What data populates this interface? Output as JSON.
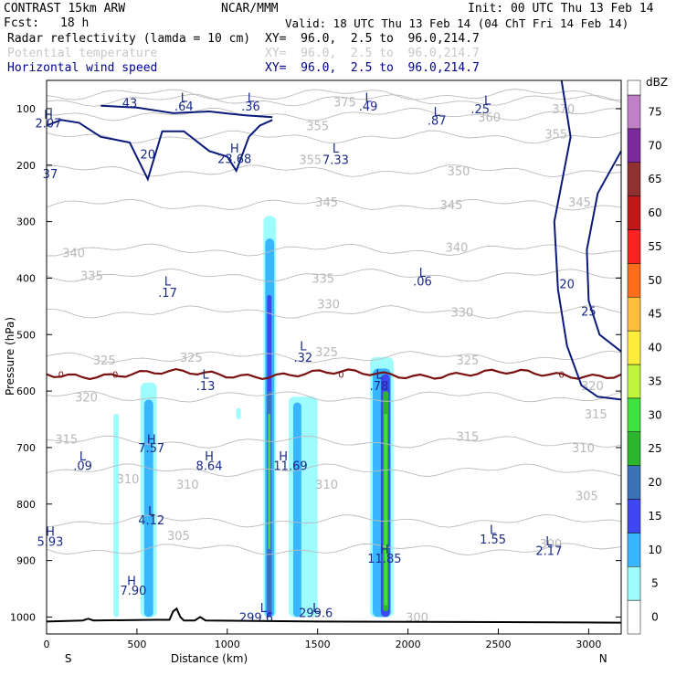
{
  "header": {
    "model": "CONTRAST 15km ARW",
    "org": "NCAR/MMM",
    "init": "Init: 00 UTC Thu 13 Feb 14",
    "fcst_label": "Fcst:",
    "fcst_value": "18 h",
    "valid": "Valid: 18 UTC Thu 13 Feb 14 (04 ChT Fri 14 Feb 14)"
  },
  "fields": [
    {
      "name": "Radar reflectivity (lamda = 10 cm)",
      "xy": "XY=  96.0,  2.5 to  96.0,214.7",
      "color": "#000000"
    },
    {
      "name": "Potential temperature",
      "xy": "XY=  96.0,  2.5 to  96.0,214.7",
      "color": "#c8c8c8"
    },
    {
      "name": "Horizontal wind speed",
      "xy": "XY=  96.0,  2.5 to  96.0,214.7",
      "color": "#00008b"
    }
  ],
  "chart_data": {
    "type": "cross-section",
    "xlabel": "Distance (km)",
    "ylabel": "Pressure (hPa)",
    "xlim": [
      0,
      3180
    ],
    "ylim": [
      1030,
      50
    ],
    "x_ticks": [
      0,
      500,
      1000,
      1500,
      2000,
      2500,
      3000
    ],
    "y_ticks": [
      100,
      200,
      300,
      400,
      500,
      600,
      700,
      800,
      900,
      1000
    ],
    "left_end": "S",
    "right_end": "N",
    "colorbar": {
      "unit": "dBZ",
      "levels": [
        0,
        5,
        10,
        15,
        20,
        25,
        30,
        35,
        40,
        45,
        50,
        55,
        60,
        65,
        70,
        75
      ],
      "colors": [
        "#ffffff",
        "#9ffcfc",
        "#38b6ff",
        "#3f48f0",
        "#3a73b8",
        "#2db52d",
        "#3fe23f",
        "#bef53c",
        "#fcec3c",
        "#fcbe3c",
        "#fb6c1c",
        "#fb2222",
        "#c01818",
        "#903030",
        "#7d2a9f",
        "#c080c8"
      ]
    },
    "reflectivity_cells": [
      {
        "x0": 370,
        "x1": 400,
        "ptop": 640,
        "pbot": 1000,
        "dbz": 5
      },
      {
        "x0": 520,
        "x1": 610,
        "ptop": 585,
        "pbot": 1000,
        "dbz": 5
      },
      {
        "x0": 540,
        "x1": 590,
        "ptop": 615,
        "pbot": 1000,
        "dbz": 10
      },
      {
        "x0": 1050,
        "x1": 1075,
        "ptop": 630,
        "pbot": 650,
        "dbz": 5
      },
      {
        "x0": 1200,
        "x1": 1270,
        "ptop": 290,
        "pbot": 1000,
        "dbz": 5
      },
      {
        "x0": 1210,
        "x1": 1260,
        "ptop": 330,
        "pbot": 1000,
        "dbz": 10
      },
      {
        "x0": 1220,
        "x1": 1245,
        "ptop": 430,
        "pbot": 1000,
        "dbz": 15
      },
      {
        "x0": 1222,
        "x1": 1243,
        "ptop": 600,
        "pbot": 990,
        "dbz": 20
      },
      {
        "x0": 1226,
        "x1": 1238,
        "ptop": 640,
        "pbot": 880,
        "dbz": 30
      },
      {
        "x0": 1340,
        "x1": 1500,
        "ptop": 610,
        "pbot": 1000,
        "dbz": 5
      },
      {
        "x0": 1365,
        "x1": 1410,
        "ptop": 620,
        "pbot": 1000,
        "dbz": 10
      },
      {
        "x0": 1790,
        "x1": 1920,
        "ptop": 540,
        "pbot": 1000,
        "dbz": 5
      },
      {
        "x0": 1805,
        "x1": 1905,
        "ptop": 560,
        "pbot": 1000,
        "dbz": 10
      },
      {
        "x0": 1850,
        "x1": 1900,
        "ptop": 570,
        "pbot": 1000,
        "dbz": 15
      },
      {
        "x0": 1862,
        "x1": 1892,
        "ptop": 600,
        "pbot": 990,
        "dbz": 25
      },
      {
        "x0": 1868,
        "x1": 1886,
        "ptop": 640,
        "pbot": 980,
        "dbz": 30
      }
    ],
    "theta_contours": [
      {
        "label": "300",
        "p": 880
      },
      {
        "label": "305",
        "p": 830
      },
      {
        "label": "310",
        "p": 740
      },
      {
        "label": "315",
        "p": 690
      },
      {
        "label": "320",
        "p": 610
      },
      {
        "label": "325",
        "p": 540
      },
      {
        "label": "330",
        "p": 460
      },
      {
        "label": "335",
        "p": 395
      },
      {
        "label": "340",
        "p": 350
      },
      {
        "label": "345",
        "p": 270
      },
      {
        "label": "350",
        "p": 210
      },
      {
        "label": "355",
        "p": 150
      },
      {
        "label": "360",
        "p": 110
      },
      {
        "label": "370",
        "p": 85
      },
      {
        "label": "375",
        "p": 75
      }
    ],
    "theta_labels": [
      {
        "text": "375",
        "x": 1650,
        "p": 88
      },
      {
        "text": "370",
        "x": 2860,
        "p": 100
      },
      {
        "text": "360",
        "x": 2450,
        "p": 115
      },
      {
        "text": "355",
        "x": 1500,
        "p": 130
      },
      {
        "text": "355",
        "x": 2820,
        "p": 145
      },
      {
        "text": "355",
        "x": 1460,
        "p": 190
      },
      {
        "text": "350",
        "x": 2280,
        "p": 210
      },
      {
        "text": "345",
        "x": 1550,
        "p": 265
      },
      {
        "text": "345",
        "x": 2240,
        "p": 270
      },
      {
        "text": "345",
        "x": 2950,
        "p": 265
      },
      {
        "text": "340",
        "x": 150,
        "p": 355
      },
      {
        "text": "340",
        "x": 2270,
        "p": 345
      },
      {
        "text": "335",
        "x": 250,
        "p": 395
      },
      {
        "text": "335",
        "x": 1530,
        "p": 400
      },
      {
        "text": "330",
        "x": 1560,
        "p": 445
      },
      {
        "text": "330",
        "x": 2300,
        "p": 460
      },
      {
        "text": "325",
        "x": 320,
        "p": 545
      },
      {
        "text": "325",
        "x": 800,
        "p": 540
      },
      {
        "text": "325",
        "x": 1550,
        "p": 530
      },
      {
        "text": "325",
        "x": 2330,
        "p": 545
      },
      {
        "text": "320",
        "x": 220,
        "p": 610
      },
      {
        "text": "320",
        "x": 3020,
        "p": 590
      },
      {
        "text": "315",
        "x": 110,
        "p": 685
      },
      {
        "text": "315",
        "x": 2330,
        "p": 680
      },
      {
        "text": "315",
        "x": 3040,
        "p": 640
      },
      {
        "text": "310",
        "x": 2970,
        "p": 700
      },
      {
        "text": "310",
        "x": 450,
        "p": 755
      },
      {
        "text": "310",
        "x": 780,
        "p": 765
      },
      {
        "text": "310",
        "x": 1550,
        "p": 765
      },
      {
        "text": "305",
        "x": 2990,
        "p": 785
      },
      {
        "text": "305",
        "x": 730,
        "p": 855
      },
      {
        "text": "300",
        "x": 2790,
        "p": 870
      },
      {
        "text": "300",
        "x": 2050,
        "p": 1000
      }
    ],
    "zero_line": {
      "label": "0",
      "p_mean": 570
    },
    "wind_labels": [
      {
        "text": "H",
        "x": 10,
        "p": 110
      },
      {
        "text": "2.07",
        "x": 10,
        "p": 125
      },
      {
        "text": ".43",
        "x": 450,
        "p": 90
      },
      {
        "text": "L",
        "x": 760,
        "p": 80
      },
      {
        "text": ".64",
        "x": 760,
        "p": 95
      },
      {
        "text": "L",
        "x": 1130,
        "p": 80
      },
      {
        "text": ".36",
        "x": 1130,
        "p": 95
      },
      {
        "text": "L",
        "x": 1780,
        "p": 80
      },
      {
        "text": ".49",
        "x": 1780,
        "p": 95
      },
      {
        "text": "L",
        "x": 2440,
        "p": 85
      },
      {
        "text": ".25",
        "x": 2400,
        "p": 100
      },
      {
        "text": "L",
        "x": 2160,
        "p": 105
      },
      {
        "text": ".87",
        "x": 2160,
        "p": 120
      },
      {
        "text": "20",
        "x": 560,
        "p": 180
      },
      {
        "text": "37",
        "x": 20,
        "p": 215
      },
      {
        "text": "H",
        "x": 1040,
        "p": 170
      },
      {
        "text": "23.68",
        "x": 1040,
        "p": 188
      },
      {
        "text": "L",
        "x": 1600,
        "p": 170
      },
      {
        "text": "7.33",
        "x": 1600,
        "p": 190
      },
      {
        "text": "L",
        "x": 670,
        "p": 405
      },
      {
        "text": ".17",
        "x": 670,
        "p": 425
      },
      {
        "text": "L",
        "x": 2080,
        "p": 390
      },
      {
        "text": ".06",
        "x": 2080,
        "p": 405
      },
      {
        "text": "L",
        "x": 1420,
        "p": 520
      },
      {
        "text": ".32",
        "x": 1420,
        "p": 540
      },
      {
        "text": "L",
        "x": 880,
        "p": 570
      },
      {
        "text": ".13",
        "x": 880,
        "p": 590
      },
      {
        "text": "L",
        "x": 1840,
        "p": 570
      },
      {
        "text": ".78",
        "x": 1840,
        "p": 590
      },
      {
        "text": "H",
        "x": 580,
        "p": 685
      },
      {
        "text": "7.57",
        "x": 580,
        "p": 700
      },
      {
        "text": "L",
        "x": 200,
        "p": 715
      },
      {
        "text": ".09",
        "x": 200,
        "p": 732
      },
      {
        "text": "H",
        "x": 900,
        "p": 715
      },
      {
        "text": "8.64",
        "x": 900,
        "p": 732
      },
      {
        "text": "H",
        "x": 1310,
        "p": 715
      },
      {
        "text": "11.69",
        "x": 1350,
        "p": 732
      },
      {
        "text": "L",
        "x": 580,
        "p": 812
      },
      {
        "text": "4.12",
        "x": 580,
        "p": 828
      },
      {
        "text": "H",
        "x": 20,
        "p": 848
      },
      {
        "text": "5.93",
        "x": 20,
        "p": 866
      },
      {
        "text": "L",
        "x": 2470,
        "p": 845
      },
      {
        "text": "1.55",
        "x": 2470,
        "p": 862
      },
      {
        "text": "L",
        "x": 2780,
        "p": 865
      },
      {
        "text": "2.17",
        "x": 2780,
        "p": 882
      },
      {
        "text": "H",
        "x": 1870,
        "p": 880
      },
      {
        "text": "11.85",
        "x": 1870,
        "p": 896
      },
      {
        "text": "H",
        "x": 470,
        "p": 935
      },
      {
        "text": "7.90",
        "x": 480,
        "p": 952
      },
      {
        "text": "L",
        "x": 1200,
        "p": 983
      },
      {
        "text": "299.6",
        "x": 1160,
        "p": 1000
      },
      {
        "text": "L",
        "x": 1490,
        "p": 983
      },
      {
        "text": "299.6",
        "x": 1490,
        "p": 992
      },
      {
        "text": "20",
        "x": 2880,
        "p": 410
      },
      {
        "text": "25",
        "x": 3000,
        "p": 458
      }
    ]
  }
}
